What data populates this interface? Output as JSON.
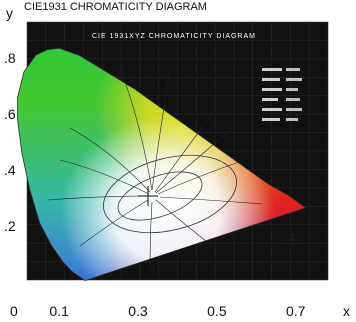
{
  "chart_data": {
    "type": "diagram",
    "title": "CIE1931 CHROMATICITY DIAGRAM",
    "inset_title": "CIE 1931XYZ CHROMATICITY DIAGRAM",
    "xlabel": "x",
    "ylabel": "y",
    "x_ticks": [
      "0",
      "0.1",
      "0.3",
      "0.5",
      "0.7"
    ],
    "x_tick_values": [
      0,
      0.1,
      0.3,
      0.5,
      0.7
    ],
    "y_ticks": [
      ".8",
      ".6",
      ".4",
      ".2"
    ],
    "y_tick_values": [
      0.8,
      0.6,
      0.4,
      0.2
    ],
    "grid": true,
    "spectral_locus": [
      [
        0.175,
        0.005
      ],
      [
        0.16,
        0.02
      ],
      [
        0.14,
        0.04
      ],
      [
        0.12,
        0.07
      ],
      [
        0.09,
        0.13
      ],
      [
        0.06,
        0.21
      ],
      [
        0.035,
        0.33
      ],
      [
        0.015,
        0.46
      ],
      [
        0.004,
        0.58
      ],
      [
        0.004,
        0.66
      ],
      [
        0.02,
        0.75
      ],
      [
        0.05,
        0.81
      ],
      [
        0.08,
        0.83
      ],
      [
        0.11,
        0.835
      ],
      [
        0.16,
        0.81
      ],
      [
        0.23,
        0.75
      ],
      [
        0.3,
        0.69
      ],
      [
        0.37,
        0.62
      ],
      [
        0.44,
        0.55
      ],
      [
        0.51,
        0.48
      ],
      [
        0.58,
        0.41
      ],
      [
        0.64,
        0.35
      ],
      [
        0.69,
        0.31
      ],
      [
        0.735,
        0.265
      ]
    ],
    "white_point": [
      0.333,
      0.333
    ],
    "colors": {
      "background": "#111111",
      "grid": "#2e2e2e",
      "red_corner": "#e3101c",
      "green_top": "#1ec83a",
      "blue_bottom": "#3040c8",
      "yellow": "#f4e81a",
      "magenta": "#d0208e"
    }
  }
}
